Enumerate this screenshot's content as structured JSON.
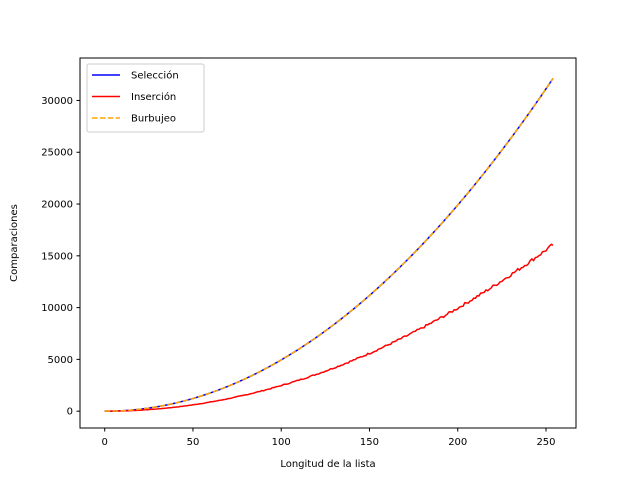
{
  "chart_data": {
    "type": "line",
    "title": "",
    "xlabel": "Longitud de la lista",
    "ylabel": "Comparaciones",
    "xlim": [
      -14,
      267
    ],
    "ylim": [
      -1625,
      34100
    ],
    "xticks": [
      0,
      50,
      100,
      150,
      200,
      250
    ],
    "yticks": [
      0,
      5000,
      10000,
      15000,
      20000,
      25000,
      30000
    ],
    "grid": false,
    "legend_position": "upper-left",
    "x_range": [
      0,
      254
    ],
    "series": [
      {
        "name": "Selección",
        "color": "#0000ff",
        "style": "solid",
        "formula": "n*(n-1)/2",
        "approx_end": [
          254,
          32131
        ]
      },
      {
        "name": "Inserción",
        "color": "#ff0000",
        "style": "solid",
        "formula": "approx n*(n-1)/4 with noise",
        "approx_end": [
          254,
          16200
        ]
      },
      {
        "name": "Burbujeo",
        "color": "#ffa500",
        "style": "dashed",
        "formula": "n*(n-1)/2",
        "approx_end": [
          254,
          32131
        ]
      }
    ]
  }
}
